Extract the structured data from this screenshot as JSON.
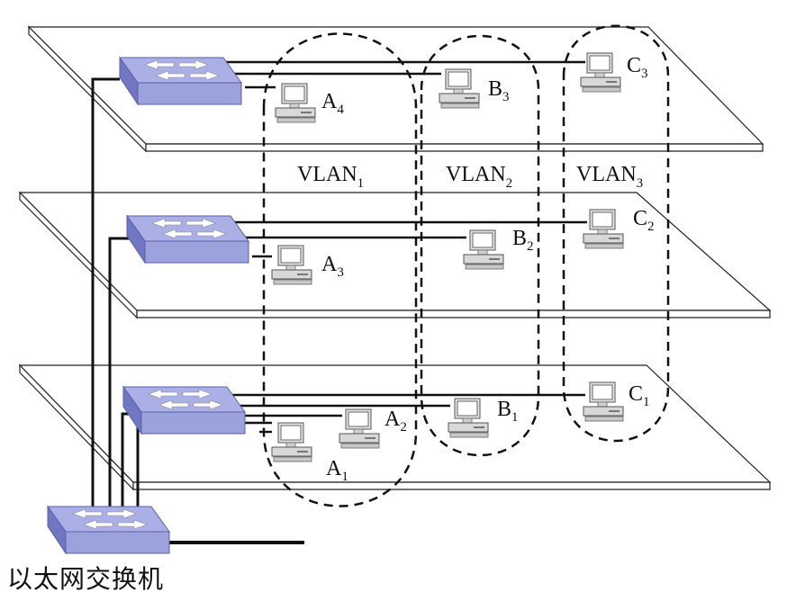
{
  "vlans": [
    {
      "id": "vlan1",
      "label": "VLAN",
      "sub": "1"
    },
    {
      "id": "vlan2",
      "label": "VLAN",
      "sub": "2"
    },
    {
      "id": "vlan3",
      "label": "VLAN",
      "sub": "3"
    }
  ],
  "computers": [
    {
      "id": "a4",
      "label": "A",
      "sub": "4"
    },
    {
      "id": "b3",
      "label": "B",
      "sub": "3"
    },
    {
      "id": "c3",
      "label": "C",
      "sub": "3"
    },
    {
      "id": "a3",
      "label": "A",
      "sub": "3"
    },
    {
      "id": "b2",
      "label": "B",
      "sub": "2"
    },
    {
      "id": "c2",
      "label": "C",
      "sub": "2"
    },
    {
      "id": "a1",
      "label": "A",
      "sub": "1"
    },
    {
      "id": "a2",
      "label": "A",
      "sub": "2"
    },
    {
      "id": "b1",
      "label": "B",
      "sub": "1"
    },
    {
      "id": "c1",
      "label": "C",
      "sub": "1"
    }
  ],
  "ethernet_switch_label": "以太网交换机",
  "colors": {
    "switch_top": "#aab0e6",
    "switch_side": "#7d84cc",
    "line": "#111111",
    "pc_body": "#e6e6e6",
    "pc_screen": "#ffffff"
  }
}
